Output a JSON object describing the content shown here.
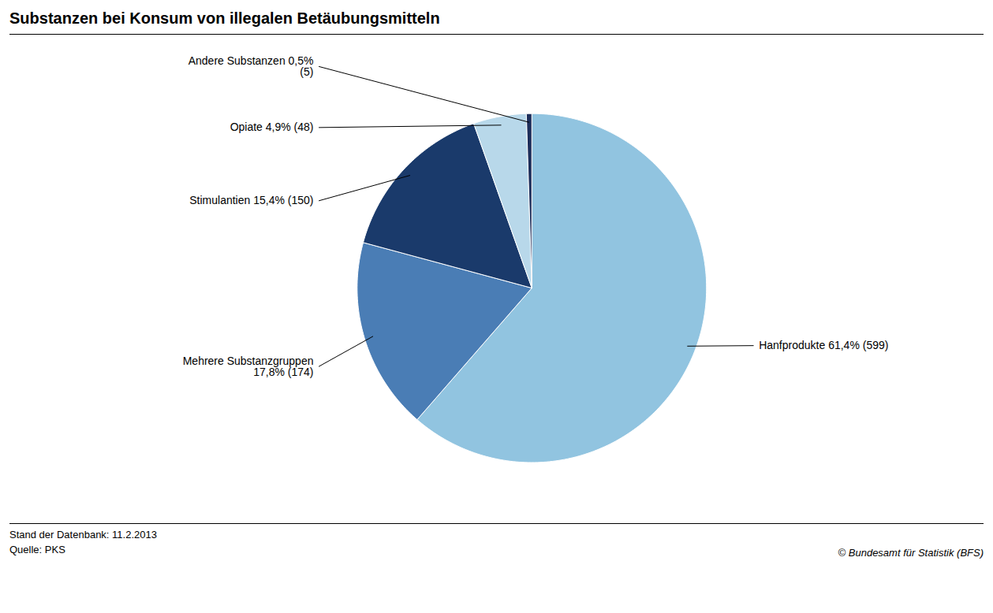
{
  "chart_data": {
    "type": "pie",
    "title": "Substanzen bei Konsum von illegalen Betäubungsmitteln",
    "categories": [
      "Hanfprodukte",
      "Mehrere Substanzgruppen",
      "Stimulantien",
      "Opiate",
      "Andere Substanzen"
    ],
    "values": [
      61.4,
      17.8,
      15.4,
      4.9,
      0.5
    ],
    "value_labels": [
      "Hanfprodukte 61,4% (599)",
      "Mehrere Substanzgruppen\n17,8% (174)",
      "Stimulantien 15,4% (150)",
      "Opiate 4,9% (48)",
      "Andere Substanzen 0,5%\n(5)"
    ],
    "colors": [
      "#91C4E0",
      "#4A7DB5",
      "#1A3A6B",
      "#B8D8EA",
      "#1C2D5A"
    ],
    "data_labels": true,
    "annotations": [
      "Stand der Datenbank: 11.2.2013",
      "Quelle: PKS",
      "© Bundesamt für Statistik (BFS)"
    ]
  }
}
